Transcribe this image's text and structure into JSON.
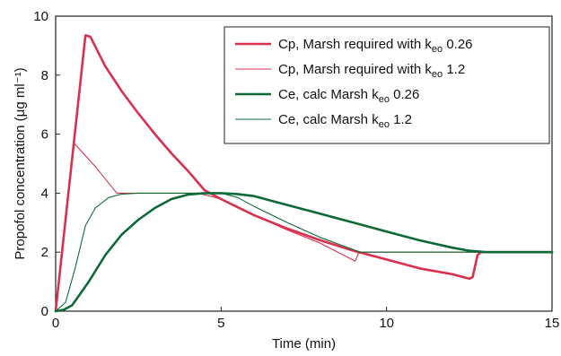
{
  "chart_data": {
    "type": "line",
    "xlabel": "Time (min)",
    "ylabel": "Propofol concentration (μg ml⁻¹)",
    "xlim": [
      0,
      15
    ],
    "ylim": [
      0,
      10
    ],
    "xticks": [
      "0",
      "5",
      "10",
      "15"
    ],
    "yticks": [
      "0",
      "2",
      "4",
      "6",
      "8",
      "10"
    ],
    "grid": false,
    "legend_position": "top-right",
    "series": [
      {
        "name_prefix": "Cp, Marsh required with k",
        "name_sub": "eo",
        "name_suffix": " 0.26",
        "color": "#d8304e",
        "style": "thick",
        "points": [
          [
            0,
            0
          ],
          [
            0.9,
            9.35
          ],
          [
            1.05,
            9.3
          ],
          [
            1.5,
            8.3
          ],
          [
            2,
            7.45
          ],
          [
            2.5,
            6.7
          ],
          [
            3,
            6.0
          ],
          [
            3.5,
            5.35
          ],
          [
            4,
            4.75
          ],
          [
            4.5,
            4.1
          ],
          [
            5,
            3.8
          ],
          [
            6,
            3.25
          ],
          [
            7,
            2.8
          ],
          [
            8,
            2.4
          ],
          [
            9,
            2.05
          ],
          [
            10,
            1.75
          ],
          [
            11,
            1.45
          ],
          [
            12,
            1.25
          ],
          [
            12.5,
            1.1
          ],
          [
            12.6,
            1.15
          ],
          [
            12.75,
            1.9
          ],
          [
            12.85,
            2.0
          ],
          [
            15,
            2.0
          ]
        ]
      },
      {
        "name_prefix": "Cp, Marsh required with k",
        "name_sub": "eo",
        "name_suffix": " 1.2",
        "color": "#d8304e",
        "style": "thin",
        "points": [
          [
            0,
            0
          ],
          [
            0.55,
            5.7
          ],
          [
            1.2,
            4.9
          ],
          [
            1.85,
            4.0
          ],
          [
            4.3,
            4.0
          ],
          [
            5,
            3.8
          ],
          [
            6,
            3.25
          ],
          [
            7,
            2.75
          ],
          [
            8,
            2.3
          ],
          [
            9.05,
            1.7
          ],
          [
            9.15,
            1.95
          ],
          [
            9.25,
            2.0
          ],
          [
            15,
            2.0
          ]
        ]
      },
      {
        "name_prefix": "Ce, calc Marsh k",
        "name_sub": "eo",
        "name_suffix": " 0.26",
        "color": "#0d6a38",
        "style": "thick",
        "points": [
          [
            0,
            0
          ],
          [
            0.25,
            0.05
          ],
          [
            0.5,
            0.2
          ],
          [
            1,
            1.0
          ],
          [
            1.5,
            1.9
          ],
          [
            2,
            2.6
          ],
          [
            2.5,
            3.1
          ],
          [
            3,
            3.5
          ],
          [
            3.5,
            3.8
          ],
          [
            4,
            3.95
          ],
          [
            4.5,
            4.0
          ],
          [
            5,
            4.0
          ],
          [
            5.5,
            3.97
          ],
          [
            6,
            3.9
          ],
          [
            7,
            3.6
          ],
          [
            8,
            3.3
          ],
          [
            9,
            3.0
          ],
          [
            10,
            2.7
          ],
          [
            11,
            2.4
          ],
          [
            12,
            2.15
          ],
          [
            12.5,
            2.05
          ],
          [
            13,
            2.0
          ],
          [
            15,
            2.0
          ]
        ]
      },
      {
        "name_prefix": "Ce, calc Marsh k",
        "name_sub": "eo",
        "name_suffix": " 1.2",
        "color": "#0d6a38",
        "style": "thin",
        "points": [
          [
            0,
            0
          ],
          [
            0.3,
            0.3
          ],
          [
            0.6,
            1.5
          ],
          [
            0.9,
            2.9
          ],
          [
            1.2,
            3.5
          ],
          [
            1.6,
            3.85
          ],
          [
            2,
            3.97
          ],
          [
            2.5,
            4.0
          ],
          [
            5,
            4.0
          ],
          [
            5.5,
            3.85
          ],
          [
            6,
            3.55
          ],
          [
            7,
            3.0
          ],
          [
            8,
            2.5
          ],
          [
            9.2,
            2.0
          ],
          [
            15,
            2.0
          ]
        ]
      }
    ]
  }
}
